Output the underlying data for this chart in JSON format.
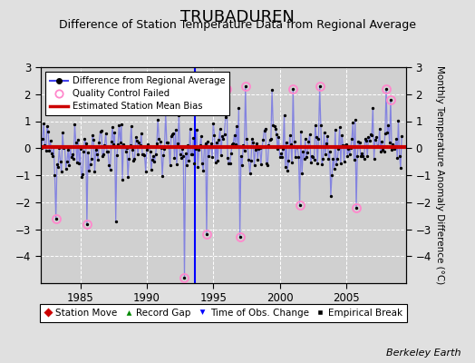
{
  "title": "TRUBADUREN",
  "subtitle": "Difference of Station Temperature Data from Regional Average",
  "ylabel": "Monthly Temperature Anomaly Difference (°C)",
  "credit": "Berkeley Earth",
  "xlim": [
    1982.0,
    2009.5
  ],
  "ylim": [
    -5,
    3
  ],
  "yticks": [
    -4,
    -3,
    -2,
    -1,
    0,
    1,
    2,
    3
  ],
  "xticks": [
    1985,
    1990,
    1995,
    2000,
    2005
  ],
  "bias_line": 0.05,
  "background_color": "#e0e0e0",
  "plot_bg_color": "#d0d0d0",
  "line_color": "#4444ee",
  "line_alpha": 0.55,
  "bias_color": "#cc0000",
  "qc_color": "#ff88cc",
  "title_fontsize": 13,
  "subtitle_fontsize": 9,
  "seed": 42
}
